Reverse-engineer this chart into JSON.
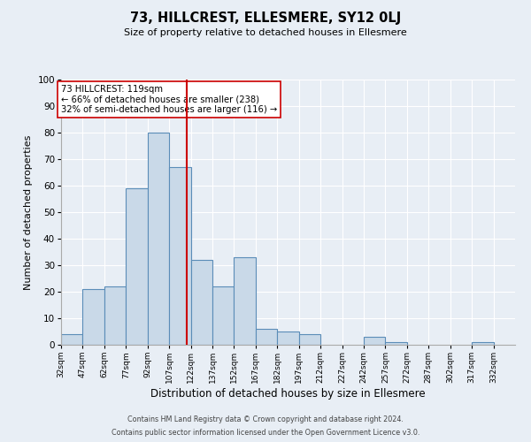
{
  "title": "73, HILLCREST, ELLESMERE, SY12 0LJ",
  "subtitle": "Size of property relative to detached houses in Ellesmere",
  "xlabel": "Distribution of detached houses by size in Ellesmere",
  "ylabel": "Number of detached properties",
  "bin_edges": [
    32,
    47,
    62,
    77,
    92,
    107,
    122,
    137,
    152,
    167,
    182,
    197,
    212,
    227,
    242,
    257,
    272,
    287,
    302,
    317,
    332,
    347
  ],
  "counts": [
    4,
    21,
    22,
    59,
    80,
    67,
    32,
    22,
    33,
    6,
    5,
    4,
    0,
    0,
    3,
    1,
    0,
    0,
    0,
    1,
    0
  ],
  "vline_x": 119,
  "bar_facecolor": "#c9d9e8",
  "bar_edgecolor": "#5b8db8",
  "vline_color": "#cc0000",
  "annotation_text": "73 HILLCREST: 119sqm\n← 66% of detached houses are smaller (238)\n32% of semi-detached houses are larger (116) →",
  "annotation_box_edgecolor": "#cc0000",
  "background_color": "#e8eef5",
  "ylim": [
    0,
    100
  ],
  "yticks": [
    0,
    10,
    20,
    30,
    40,
    50,
    60,
    70,
    80,
    90,
    100
  ],
  "footer_line1": "Contains HM Land Registry data © Crown copyright and database right 2024.",
  "footer_line2": "Contains public sector information licensed under the Open Government Licence v3.0."
}
